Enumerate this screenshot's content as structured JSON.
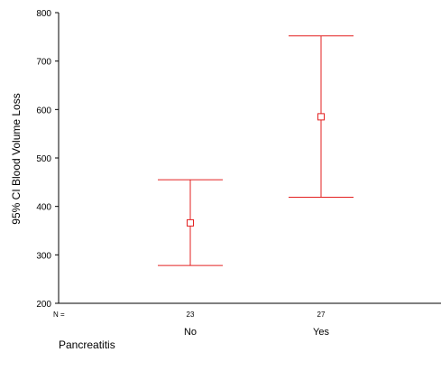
{
  "chart_data": {
    "type": "errorbar",
    "title": "",
    "xlabel": "Pancreatitis",
    "ylabel": "95% CI Blood Volume Loss",
    "ylim": [
      200,
      800
    ],
    "yticks": [
      "200",
      "300",
      "400",
      "500",
      "600",
      "700",
      "800"
    ],
    "n_label": "N =",
    "categories": [
      "No",
      "Yes"
    ],
    "n": [
      "23",
      "27"
    ],
    "mean": [
      366,
      585
    ],
    "lower": [
      278,
      419
    ],
    "upper": [
      455,
      752
    ],
    "color": "#e32020",
    "grid": false
  }
}
